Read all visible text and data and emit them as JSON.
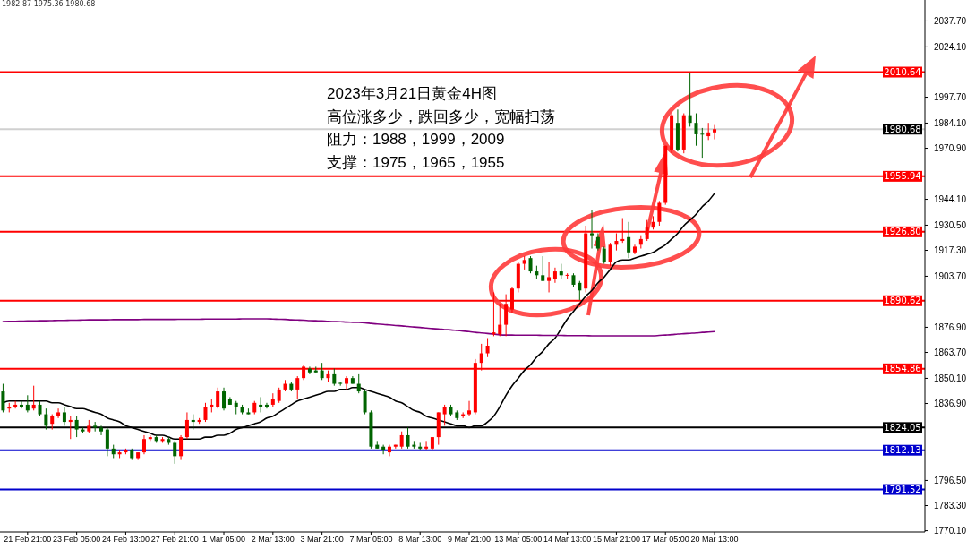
{
  "chart_data": {
    "type": "candlestick",
    "categories": [
      null,
      null,
      null,
      null,
      "21 Feb 21:00",
      null,
      null,
      null,
      null,
      null,
      null,
      null,
      "23 Feb 05:00",
      null,
      null,
      null,
      null,
      null,
      null,
      null,
      "24 Feb 13:00",
      null,
      null,
      null,
      null,
      null,
      null,
      null,
      "27 Feb 21:00",
      null,
      null,
      null,
      null,
      null,
      null,
      null,
      "1 Mar 05:00",
      null,
      null,
      null,
      null,
      null,
      null,
      null,
      "2 Mar 13:00",
      null,
      null,
      null,
      null,
      null,
      null,
      null,
      "3 Mar 21:00",
      null,
      null,
      null,
      null,
      null,
      null,
      null,
      "7 Mar 05:00",
      null,
      null,
      null,
      null,
      null,
      null,
      null,
      "8 Mar 13:00",
      null,
      null,
      null,
      null,
      null,
      null,
      null,
      "9 Mar 21:00",
      null,
      null,
      null,
      null,
      null,
      null,
      null,
      "13 Mar 05:00",
      null,
      null,
      null,
      null,
      null,
      null,
      null,
      "14 Mar 13:00",
      null,
      null,
      null,
      null,
      null,
      null,
      null,
      "15 Mar 21:00",
      null,
      null,
      null,
      null,
      null,
      null,
      null,
      "17 Mar 05:00",
      null,
      null,
      null,
      null,
      null,
      null,
      null,
      "20 Mar 13:00"
    ],
    "ohlc": [
      [
        1843,
        1847,
        1832,
        1833
      ],
      [
        1834,
        1837,
        1832,
        1835
      ],
      [
        1835,
        1838,
        1834,
        1836
      ],
      [
        1836,
        1838,
        1834,
        1835
      ],
      [
        1836,
        1841,
        1832,
        1833
      ],
      [
        1834,
        1846,
        1833,
        1836
      ],
      [
        1836,
        1838,
        1830,
        1831
      ],
      [
        1831,
        1834,
        1823,
        1825
      ],
      [
        1826,
        1831,
        1823,
        1830
      ],
      [
        1830,
        1834,
        1829,
        1832
      ],
      [
        1832,
        1835,
        1825,
        1827
      ],
      [
        1827,
        1830,
        1818,
        1828
      ],
      [
        1828,
        1830,
        1819,
        1823
      ],
      [
        1823,
        1824,
        1821,
        1822
      ],
      [
        1822,
        1828,
        1821,
        1825
      ],
      [
        1825,
        1827,
        1822,
        1824
      ],
      [
        1824,
        1825,
        1820,
        1822
      ],
      [
        1823,
        1824,
        1809,
        1813
      ],
      [
        1813,
        1815,
        1808,
        1810
      ],
      [
        1810,
        1812,
        1808,
        1811
      ],
      [
        1811,
        1813,
        1810,
        1812
      ],
      [
        1812,
        1813,
        1807,
        1808
      ],
      [
        1808,
        1811,
        1807,
        1811
      ],
      [
        1811,
        1820,
        1810,
        1818
      ],
      [
        1818,
        1820,
        1817,
        1819
      ],
      [
        1819,
        1820,
        1816,
        1817
      ],
      [
        1817,
        1819,
        1816,
        1818
      ],
      [
        1818,
        1819,
        1815,
        1816
      ],
      [
        1816,
        1817,
        1805,
        1809
      ],
      [
        1809,
        1820,
        1807,
        1819
      ],
      [
        1819,
        1832,
        1818,
        1828
      ],
      [
        1828,
        1831,
        1823,
        1827
      ],
      [
        1827,
        1829,
        1826,
        1828
      ],
      [
        1828,
        1837,
        1827,
        1835
      ],
      [
        1835,
        1839,
        1832,
        1836
      ],
      [
        1835,
        1845,
        1834,
        1843
      ],
      [
        1843,
        1845,
        1833,
        1834
      ],
      [
        1839,
        1840,
        1836,
        1836
      ],
      [
        1837,
        1838,
        1831,
        1835
      ],
      [
        1835,
        1836,
        1831,
        1832
      ],
      [
        1832,
        1834,
        1831,
        1831
      ],
      [
        1832,
        1838,
        1831,
        1837
      ],
      [
        1836,
        1840,
        1832,
        1835
      ],
      [
        1836,
        1837,
        1834,
        1835
      ],
      [
        1836,
        1842,
        1835,
        1839
      ],
      [
        1838,
        1845,
        1837,
        1844
      ],
      [
        1844,
        1849,
        1843,
        1847
      ],
      [
        1847,
        1848,
        1843,
        1844
      ],
      [
        1844,
        1851,
        1839,
        1850
      ],
      [
        1850,
        1857,
        1849,
        1856
      ],
      [
        1855,
        1856,
        1852,
        1853
      ],
      [
        1854,
        1856,
        1853,
        1853
      ],
      [
        1854,
        1858,
        1849,
        1850
      ],
      [
        1850,
        1854,
        1848,
        1852
      ],
      [
        1852,
        1855,
        1846,
        1847
      ],
      [
        1847.5,
        1848,
        1846,
        1847
      ],
      [
        1847,
        1851,
        1844,
        1850
      ],
      [
        1850,
        1851,
        1847,
        1847
      ],
      [
        1847,
        1852,
        1842,
        1843
      ],
      [
        1843,
        1844,
        1831,
        1832
      ],
      [
        1832,
        1833,
        1813,
        1814
      ],
      [
        1815,
        1817,
        1813,
        1813
      ],
      [
        1814,
        1815,
        1810,
        1812
      ],
      [
        1811,
        1815,
        1809,
        1814
      ],
      [
        1814,
        1815,
        1813,
        1815
      ],
      [
        1814,
        1822,
        1813,
        1820
      ],
      [
        1820,
        1824,
        1813,
        1814
      ],
      [
        1815,
        1817,
        1813,
        1814
      ],
      [
        1814,
        1816,
        1812,
        1813
      ],
      [
        1813,
        1817,
        1812,
        1814
      ],
      [
        1813,
        1819,
        1812,
        1819
      ],
      [
        1819,
        1832,
        1815,
        1832
      ],
      [
        1831,
        1836,
        1825,
        1835
      ],
      [
        1835,
        1836,
        1830,
        1831
      ],
      [
        1832,
        1833,
        1828,
        1829
      ],
      [
        1830,
        1832,
        1829,
        1831
      ],
      [
        1831,
        1838,
        1830,
        1833
      ],
      [
        1832,
        1860,
        1831,
        1858
      ],
      [
        1858,
        1868,
        1854,
        1863
      ],
      [
        1863,
        1871,
        1861,
        1867
      ],
      [
        1873,
        1895,
        1872,
        1874
      ],
      [
        1873,
        1889,
        1872,
        1878
      ],
      [
        1878,
        1894,
        1872,
        1889
      ],
      [
        1886,
        1898,
        1884,
        1897
      ],
      [
        1897,
        1911,
        1895,
        1910
      ],
      [
        1910,
        1914,
        1907,
        1912
      ],
      [
        1913,
        1914,
        1905,
        1906
      ],
      [
        1906,
        1909,
        1902,
        1904
      ],
      [
        1904,
        1914,
        1901,
        1901
      ],
      [
        1901,
        1911,
        1895,
        1903
      ],
      [
        1902,
        1908,
        1900,
        1906
      ],
      [
        1906,
        1910,
        1902,
        1904
      ],
      [
        1903.7,
        1905,
        1902,
        1904.2
      ],
      [
        1904,
        1905,
        1898,
        1899
      ],
      [
        1900,
        1901,
        1891,
        1896
      ],
      [
        1897,
        1930,
        1895,
        1926
      ],
      [
        1926,
        1938,
        1918,
        1925
      ],
      [
        1924,
        1926,
        1917,
        1918
      ],
      [
        1918,
        1919,
        1910,
        1911
      ],
      [
        1911,
        1921,
        1909,
        1920
      ],
      [
        1920,
        1926,
        1917,
        1922
      ],
      [
        1922,
        1934,
        1921,
        1923
      ],
      [
        1924,
        1932,
        1913,
        1916
      ],
      [
        1916,
        1920,
        1915,
        1919
      ],
      [
        1920,
        1925,
        1918,
        1923
      ],
      [
        1923,
        1933,
        1922,
        1929
      ],
      [
        1929,
        1935,
        1928,
        1932
      ],
      [
        1932,
        1943,
        1930,
        1942
      ],
      [
        1942,
        1972,
        1941,
        1972
      ],
      [
        1970,
        1989,
        1968,
        1988
      ],
      [
        1984,
        1991,
        1969,
        1970
      ],
      [
        1970,
        1989,
        1968,
        1988
      ],
      [
        1988,
        2010,
        1982,
        1984
      ],
      [
        1984,
        1989,
        1972,
        1978
      ],
      [
        1978.3,
        1981.3,
        1965.7,
        1977.9
      ],
      [
        1977,
        1984,
        1975,
        1979
      ],
      [
        1979,
        1982.87,
        1975.36,
        1980.68
      ]
    ],
    "colors": [
      "#006400",
      "#ff0000",
      "#ff0000",
      "#006400",
      "#006400",
      "#ff0000",
      "#006400",
      "#006400",
      "#ff0000",
      "#ff0000",
      "#006400",
      "#ff0000",
      "#006400",
      "#006400",
      "#ff0000",
      "#006400",
      "#006400",
      "#006400",
      "#006400",
      "#ff0000",
      "#ff0000",
      "#006400",
      "#ff0000",
      "#ff0000",
      "#ff0000",
      "#006400",
      "#ff0000",
      "#006400",
      "#006400",
      "#ff0000",
      "#ff0000",
      "#006400",
      "#ff0000",
      "#ff0000",
      "#ff0000",
      "#ff0000",
      "#006400",
      "#006400",
      "#006400",
      "#006400",
      "#006400",
      "#ff0000",
      "#006400",
      "#006400",
      "#ff0000",
      "#ff0000",
      "#ff0000",
      "#006400",
      "#ff0000",
      "#ff0000",
      "#006400",
      "#006400",
      "#006400",
      "#ff0000",
      "#006400",
      "#006400",
      "#ff0000",
      "#006400",
      "#006400",
      "#006400",
      "#006400",
      "#006400",
      "#006400",
      "#ff0000",
      "#ff0000",
      "#ff0000",
      "#006400",
      "#006400",
      "#006400",
      "#ff0000",
      "#ff0000",
      "#ff0000",
      "#ff0000",
      "#006400",
      "#006400",
      "#ff0000",
      "#ff0000",
      "#ff0000",
      "#ff0000",
      "#ff0000",
      "#ff0000",
      "#ff0000",
      "#ff0000",
      "#ff0000",
      "#ff0000",
      "#ff0000",
      "#006400",
      "#006400",
      "#006400",
      "#ff0000",
      "#ff0000",
      "#006400",
      "#ff0000",
      "#006400",
      "#006400",
      "#ff0000",
      "#006400",
      "#006400",
      "#006400",
      "#ff0000",
      "#ff0000",
      "#ff0000",
      "#006400",
      "#ff0000",
      "#ff0000",
      "#ff0000",
      "#ff0000",
      "#ff0000",
      "#ff0000",
      "#ff0000",
      "#006400",
      "#ff0000",
      "#006400",
      "#006400",
      "#006400",
      "#ff0000",
      "#ff0000"
    ],
    "series": [
      {
        "type": "line",
        "color": "#000000",
        "values": [
          1837,
          1838,
          1838,
          1838,
          1838,
          1838,
          1838,
          1838,
          1837,
          1837,
          1836,
          1835,
          1834,
          1834,
          1833,
          1832,
          1831,
          1829,
          1828,
          1827,
          1825,
          1824,
          1823,
          1822,
          1821,
          1820,
          1820,
          1819,
          1818,
          1818,
          1818,
          1818,
          1818,
          1819,
          1819,
          1820,
          1820,
          1821,
          1823,
          1824,
          1825,
          1826,
          1827,
          1829,
          1830,
          1832,
          1834,
          1836,
          1838,
          1839,
          1840,
          1841,
          1842,
          1843,
          1843,
          1844,
          1844,
          1845,
          1845,
          1844,
          1843,
          1842,
          1841,
          1840,
          1838,
          1837,
          1835,
          1833,
          1832,
          1830,
          1829,
          1828,
          1827,
          1826,
          1825,
          1825,
          1824,
          1825,
          1825,
          1827,
          1830,
          1835,
          1841,
          1846,
          1850,
          1854,
          1857,
          1861,
          1864,
          1868,
          1871,
          1876,
          1881,
          1885,
          1889,
          1893,
          1896,
          1900,
          1903,
          1907,
          1911,
          1912,
          1912,
          1913,
          1914,
          1915,
          1916,
          1918,
          1920,
          1923,
          1926,
          1930,
          1933,
          1936,
          1940,
          1943,
          1947
        ]
      },
      {
        "type": "line",
        "color": "#800080",
        "values": [
          1879.7,
          1879.8,
          1879.8,
          1879.9,
          1880.0,
          1880.0,
          1880.1,
          1880.1,
          1880.2,
          1880.3,
          1880.3,
          1880.4,
          1880.4,
          1880.5,
          1880.6,
          1880.6,
          1880.6,
          1880.6,
          1880.7,
          1880.7,
          1880.7,
          1880.7,
          1880.7,
          1880.8,
          1880.8,
          1880.8,
          1880.8,
          1880.8,
          1880.8,
          1880.9,
          1880.9,
          1880.9,
          1880.9,
          1881.0,
          1881.0,
          1881.0,
          1881.0,
          1881.0,
          1881.0,
          1881.1,
          1881.1,
          1881.1,
          1881.1,
          1881.1,
          1881.0,
          1880.9,
          1880.8,
          1880.6,
          1880.5,
          1880.4,
          1880.2,
          1880.1,
          1880.0,
          1879.8,
          1879.7,
          1879.6,
          1879.4,
          1879.3,
          1879.2,
          1879.0,
          1878.7,
          1878.4,
          1878.2,
          1877.9,
          1877.6,
          1877.4,
          1877.1,
          1876.8,
          1876.6,
          1876.3,
          1876.0,
          1875.8,
          1875.5,
          1875.3,
          1875.0,
          1874.7,
          1874.4,
          1874.0,
          1873.7,
          1873.4,
          1873.1,
          1872.7,
          1872.6,
          1872.6,
          1872.5,
          1872.5,
          1872.5,
          1872.5,
          1872.4,
          1872.4,
          1872.4,
          1872.4,
          1872.3,
          1872.3,
          1872.3,
          1872.3,
          1872.2,
          1872.2,
          1872.2,
          1872.2,
          1872.2,
          1872.2,
          1872.2,
          1872.2,
          1872.2,
          1872.2,
          1872.2,
          1872.4,
          1872.6,
          1872.8,
          1873.1,
          1873.3,
          1873.5,
          1873.7,
          1874.0,
          1874.2,
          1874.4
        ]
      }
    ],
    "ylim": [
      1769.2,
      2048.5
    ],
    "yticks": [
      {
        "value": 2037.7,
        "label": "2037.70"
      },
      {
        "value": 2024.1,
        "label": "2024.10"
      },
      {
        "value": 1997.7,
        "label": "1997.70"
      },
      {
        "value": 1984.1,
        "label": "1984.10"
      },
      {
        "value": 1970.9,
        "label": "1970.90"
      },
      {
        "value": 1944.1,
        "label": "1944.10"
      },
      {
        "value": 1930.5,
        "label": "1930.50"
      },
      {
        "value": 1917.3,
        "label": "1917.30"
      },
      {
        "value": 1903.7,
        "label": "1903.70"
      },
      {
        "value": 1876.9,
        "label": "1876.90"
      },
      {
        "value": 1863.7,
        "label": "1863.70"
      },
      {
        "value": 1850.1,
        "label": "1850.10"
      },
      {
        "value": 1836.9,
        "label": "1836.90"
      },
      {
        "value": 1796.5,
        "label": "1796.50"
      },
      {
        "value": 1783.3,
        "label": "1783.30"
      },
      {
        "value": 1770.1,
        "label": "1770.10"
      }
    ],
    "ref_lines": [
      {
        "axis": "y",
        "value": 2010.64,
        "label": "2010.64",
        "color": "#ff0000"
      },
      {
        "axis": "y",
        "value": 1980.68,
        "label": "1980.68",
        "color": "#d0d0d0"
      },
      {
        "axis": "y",
        "value": 1955.94,
        "label": "1955.94",
        "color": "#ff0000"
      },
      {
        "axis": "y",
        "value": 1926.8,
        "label": "1926.80",
        "color": "#ff0000"
      },
      {
        "axis": "y",
        "value": 1890.62,
        "label": "1890.62",
        "color": "#ff0000"
      },
      {
        "axis": "y",
        "value": 1854.86,
        "label": "1854.86",
        "color": "#ff0000"
      },
      {
        "axis": "y",
        "value": 1824.05,
        "label": "1824.05",
        "color": "#000000"
      },
      {
        "axis": "y",
        "value": 1812.13,
        "label": "1812.13",
        "color": "#0000cc"
      },
      {
        "axis": "y",
        "value": 1791.52,
        "label": "1791.52",
        "color": "#0000cc"
      }
    ],
    "annotations": [
      "1982.87 1975.36 1980.68",
      "2023年3月21日黄金4H图",
      "高位涨多少，跌回多少，宽幅扫荡",
      "阻力：1988，1999，2009",
      "支撑：1975，1965，1955"
    ]
  }
}
